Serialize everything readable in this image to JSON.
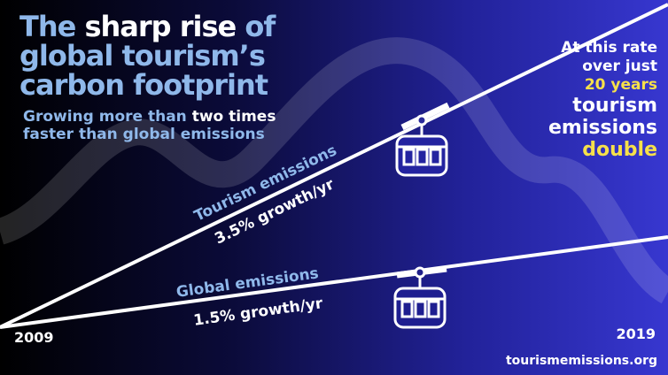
{
  "title": {
    "parts": [
      "The",
      "sharp rise",
      "of",
      "global tourism’s",
      "carbon footprint"
    ]
  },
  "subtitle": {
    "parts": [
      "Growing more than",
      "two times",
      "faster than global emissions"
    ]
  },
  "tourism_line": {
    "name": "Tourism emissions",
    "rate": "3.5% growth/yr"
  },
  "global_line": {
    "name": "Global emissions",
    "rate": "1.5% growth/yr"
  },
  "callout": {
    "lines": [
      "At this rate",
      "over just",
      "20 years",
      "tourism",
      "emissions",
      "double"
    ]
  },
  "start_year": "2009",
  "end_year": "2019",
  "source": "tourismemissions.org"
}
